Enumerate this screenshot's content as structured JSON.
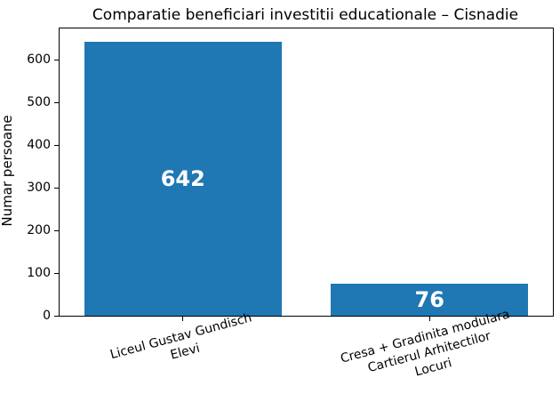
{
  "figure": {
    "background": "#ffffff"
  },
  "chart_data": {
    "type": "bar",
    "title": "Comparatie beneficiari investitii educationale – Cisnadie",
    "xlabel": "",
    "ylabel": "Numar persoane",
    "categories": [
      [
        "Liceul Gustav Gundisch",
        "Elevi"
      ],
      [
        "Cresa + Gradinita modulara",
        "Cartierul Arhitectilor",
        "Locuri"
      ]
    ],
    "values": [
      642,
      76
    ],
    "bar_labels": [
      "642",
      "76"
    ],
    "yticks": [
      0,
      100,
      200,
      300,
      400,
      500,
      600
    ],
    "ylim": [
      0,
      674
    ],
    "bar_color": "#1f77b4",
    "bar_label_color": "#ffffff",
    "axis_color": "#000000",
    "grid": "off",
    "legend": "none",
    "xtick_rotation_deg": 15,
    "bar_width_fraction": 0.8
  }
}
